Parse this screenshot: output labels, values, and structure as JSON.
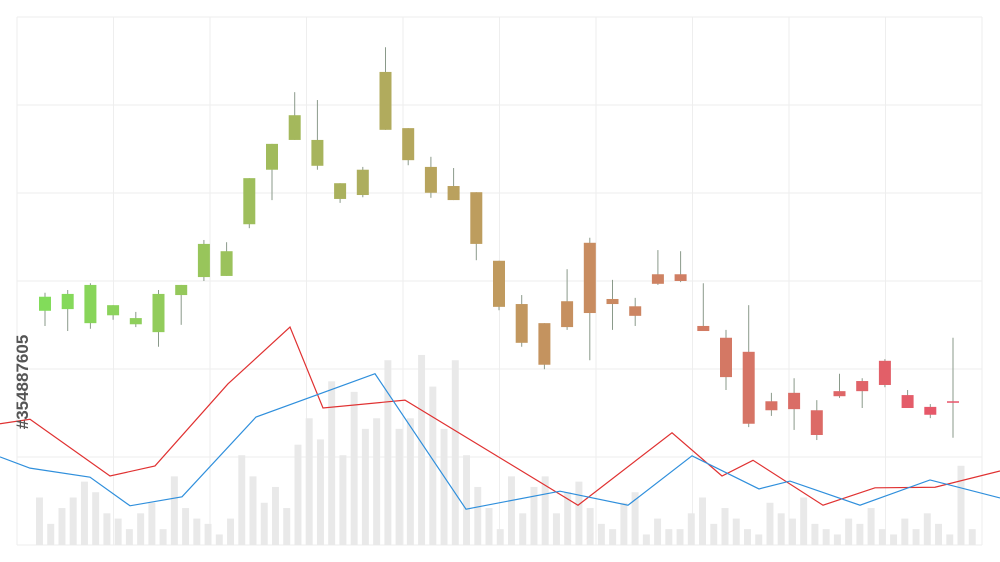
{
  "watermark": "#354887605",
  "chart_data": [
    {
      "type": "bar",
      "ylim": [
        0,
        100
      ],
      "color": "#e9e9e9",
      "values": [
        9,
        4,
        7,
        9,
        12,
        10,
        6,
        5,
        3,
        6,
        8,
        3,
        13,
        7,
        5,
        4,
        2,
        5,
        17,
        13,
        8,
        11,
        7,
        19,
        24,
        20,
        31,
        17,
        29,
        22,
        24,
        35,
        22,
        24,
        36,
        30,
        22,
        35,
        17,
        11,
        7,
        3,
        13,
        6,
        11,
        13,
        6,
        10,
        12,
        7,
        4,
        3,
        8,
        10,
        2,
        5,
        3,
        3,
        6,
        9,
        4,
        7,
        5,
        3,
        2,
        8,
        6,
        5,
        9,
        4,
        3,
        2,
        5,
        4,
        7,
        3,
        2,
        5,
        3,
        6,
        4,
        2,
        15,
        3
      ]
    },
    {
      "type": "candlestick",
      "ylim": [
        0,
        100
      ],
      "grid": true,
      "colors": [
        "#82dc5a",
        "#c09a5e",
        "#e8556a"
      ],
      "open": [
        44.7,
        45.0,
        42.5,
        43.9,
        42.3,
        40.9,
        47.5,
        50.7,
        50.9,
        60.1,
        69.8,
        75.1,
        75.1,
        67.4,
        65.3,
        76.9,
        77.2,
        70.3,
        66.9,
        65.8,
        53.6,
        45.9,
        42.5,
        41.8,
        44.3,
        46.8,
        45.5,
        51.2,
        51.2,
        42.0,
        39.9,
        37.4,
        28.6,
        30.1,
        27.0,
        29.5,
        30.4,
        31.5,
        29.7,
        27.6,
        28.5
      ],
      "high": [
        47.9,
        48.4,
        49.6,
        45.7,
        44.5,
        48.4,
        49.3,
        57.3,
        56.9,
        68.3,
        74.4,
        83.6,
        82.2,
        67.4,
        70.3,
        91.6,
        77.2,
        72.1,
        70.1,
        65.8,
        53.6,
        47.5,
        42.5,
        52.1,
        57.7,
        50.2,
        47.0,
        55.5,
        55.3,
        49.6,
        41.3,
        45.7,
        30.1,
        32.7,
        28.8,
        33.5,
        32.7,
        36.1,
        30.6,
        28.1,
        39.9
      ],
      "low": [
        42.0,
        41.1,
        41.5,
        43.1,
        41.8,
        38.3,
        42.2,
        50.0,
        50.9,
        59.4,
        64.4,
        75.1,
        69.8,
        63.9,
        64.9,
        76.9,
        70.6,
        64.8,
        64.4,
        53.7,
        44.8,
        38.3,
        34.3,
        41.3,
        35.9,
        41.3,
        42.0,
        49.3,
        49.8,
        41.1,
        30.6,
        24.0,
        26.0,
        23.5,
        21.7,
        29.2,
        27.4,
        31.1,
        27.4,
        25.6,
        22.1
      ],
      "close": [
        47.2,
        47.7,
        49.3,
        45.7,
        43.4,
        47.7,
        49.3,
        56.6,
        55.3,
        68.3,
        74.4,
        79.5,
        70.5,
        64.6,
        69.8,
        87.2,
        71.5,
        65.7,
        64.4,
        56.6,
        45.4,
        39.0,
        35.1,
        46.4,
        56.8,
        45.9,
        43.8,
        49.5,
        50.0,
        41.1,
        32.9,
        24.6,
        27.0,
        27.2,
        22.6,
        30.4,
        32.2,
        35.8,
        27.4,
        26.2,
        28.6
      ]
    },
    {
      "type": "line",
      "xlim": [
        0,
        1000
      ],
      "ylim": [
        0,
        100
      ],
      "series": [
        {
          "color": "#e03131",
          "x": [
            0,
            30,
            110,
            155,
            228,
            290,
            323,
            405,
            578,
            672,
            722,
            753,
            823,
            875,
            935,
            1000
          ],
          "values": [
            24.6,
            25.4,
            15.3,
            17.1,
            31.7,
            41.8,
            27.4,
            28.8,
            10.1,
            23.0,
            15.3,
            18.1,
            10.1,
            13.2,
            13.3,
            16.2
          ]
        },
        {
          "color": "#2f8fdc",
          "x": [
            0,
            30,
            90,
            130,
            182,
            256,
            375,
            466,
            560,
            628,
            692,
            759,
            790,
            860,
            930,
            1000
          ],
          "values": [
            18.7,
            16.7,
            15.1,
            10.0,
            11.6,
            25.8,
            33.5,
            9.4,
            12.6,
            10.1,
            18.9,
            13.0,
            14.4,
            10.1,
            14.6,
            11.4
          ]
        }
      ]
    }
  ]
}
